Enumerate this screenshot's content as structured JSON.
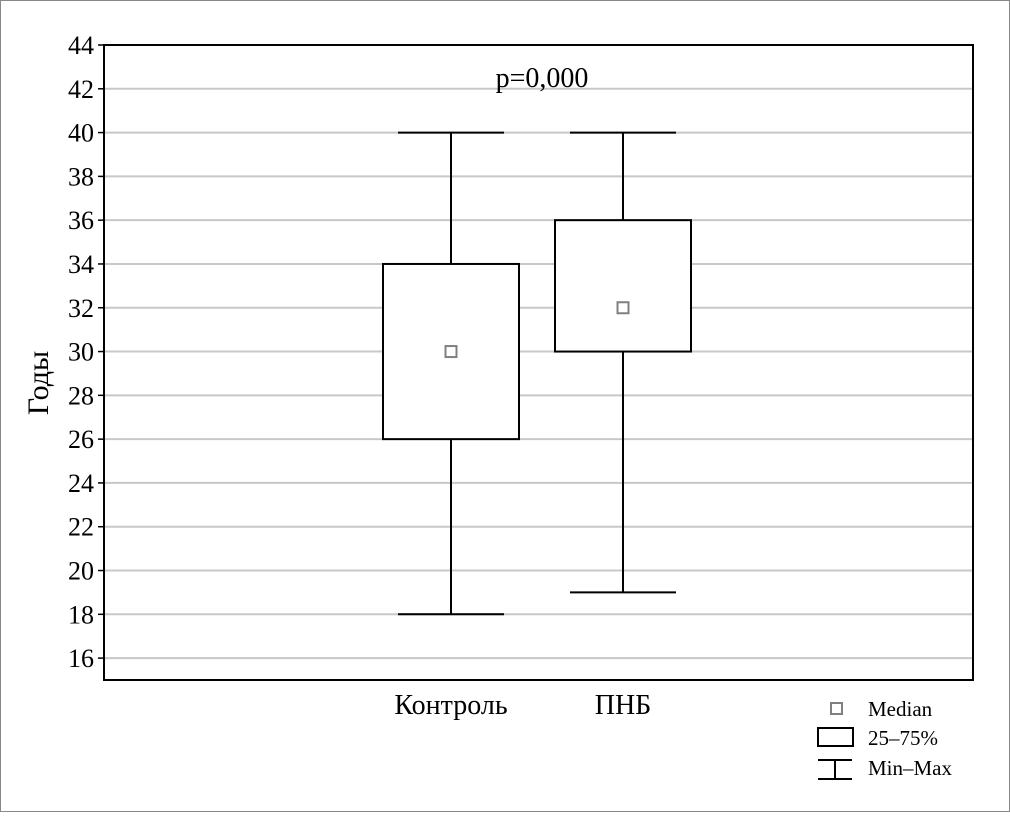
{
  "chart_data": {
    "type": "boxplot",
    "title": "",
    "xlabel": "",
    "ylabel": "Годы",
    "ylim": [
      15,
      44
    ],
    "yticks": [
      16,
      18,
      20,
      22,
      24,
      26,
      28,
      30,
      32,
      34,
      36,
      38,
      40,
      42,
      44
    ],
    "grid": true,
    "annotation": "p=0,000",
    "categories": [
      "Контроль",
      "ПНБ"
    ],
    "series": [
      {
        "category": "Контроль",
        "min": 18,
        "q1": 26,
        "median": 30,
        "q3": 34,
        "max": 40
      },
      {
        "category": "ПНБ",
        "min": 19,
        "q1": 30,
        "median": 32,
        "q3": 36,
        "max": 40
      }
    ],
    "legend": {
      "placement": "bottom-right",
      "entries": [
        "Median",
        "25–75%",
        "Min–Max"
      ]
    },
    "colors": {
      "grid": "#c8c8c8",
      "median_marker": "#808080",
      "frame": "#000000"
    }
  }
}
